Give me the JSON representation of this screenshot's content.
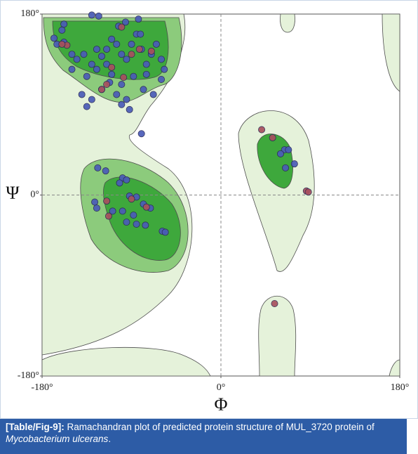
{
  "chart_data": {
    "type": "scatter",
    "x_label": "Φ",
    "y_label": "Ψ",
    "xlim": [
      -180,
      180
    ],
    "ylim": [
      -180,
      180
    ],
    "xticks": [
      {
        "value": -180,
        "label": "-180°"
      },
      {
        "value": 0,
        "label": "0°"
      },
      {
        "value": 180,
        "label": "180°"
      }
    ],
    "yticks": [
      {
        "value": -180,
        "label": "-180°"
      },
      {
        "value": 0,
        "label": "0°"
      },
      {
        "value": 180,
        "label": "180°"
      }
    ],
    "zero_lines": true,
    "series": [
      {
        "color": "#4a5cb8",
        "x": [
          -130,
          -123,
          -160,
          -168,
          -158,
          -150,
          -145,
          -138,
          -130,
          -125,
          -120,
          -115,
          -110,
          -105,
          -100,
          -95,
          -90,
          -85,
          -80,
          -75,
          -70,
          -65,
          -60,
          -57,
          -60,
          -75,
          -88,
          -100,
          -110,
          -120,
          -135,
          -150,
          -140,
          -105,
          -95,
          -92,
          -100,
          -78,
          -130,
          -135,
          -96,
          -103,
          -83,
          -158,
          -165,
          -68,
          -81,
          -115,
          -125,
          -112,
          -80,
          -124,
          -116,
          -99,
          -95,
          -102,
          -127,
          -125,
          -109,
          -92,
          -85,
          -78,
          -71,
          -95,
          -85,
          -76,
          -59,
          -56,
          -88,
          -99,
          64,
          68,
          74,
          65,
          60
        ],
        "values": [
          179,
          178,
          164,
          156,
          152,
          140,
          135,
          140,
          130,
          125,
          138,
          145,
          155,
          150,
          140,
          135,
          150,
          160,
          145,
          130,
          140,
          150,
          135,
          125,
          115,
          120,
          118,
          110,
          120,
          105,
          118,
          125,
          100,
          100,
          95,
          85,
          90,
          105,
          95,
          88,
          172,
          168,
          175,
          170,
          150,
          100,
          160,
          130,
          145,
          112,
          61,
          27,
          24,
          17,
          15,
          12,
          -7,
          -13,
          -16,
          -1,
          -2,
          -9,
          -13,
          -27,
          -29,
          -30,
          -36,
          -37,
          -20,
          -16,
          45,
          45,
          31,
          27,
          41
        ]
      },
      {
        "color": "#a8505e",
        "x": [
          -100,
          -155,
          -160,
          -120,
          -115,
          -90,
          -70,
          -98,
          -110,
          -82,
          -115,
          -90,
          -75,
          -113,
          41,
          52,
          86,
          88,
          54
        ],
        "values": [
          167,
          149,
          150,
          105,
          110,
          140,
          143,
          117,
          127,
          145,
          -6,
          -4,
          -12,
          -21,
          65,
          57,
          4,
          3,
          -108
        ]
      }
    ]
  },
  "caption": {
    "label": "[Table/Fig-9]:",
    "text": "Ramachandran plot of predicted protein structure of MUL_3720 protein of ",
    "species": "Mycobacterium ulcerans",
    "end": "."
  }
}
